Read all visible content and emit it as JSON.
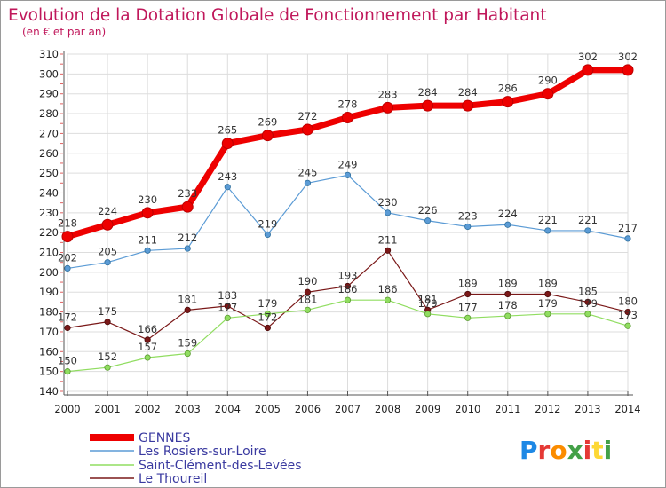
{
  "chart_data": {
    "type": "line",
    "title": "Evolution de la Dotation Globale de Fonctionnement par Habitant",
    "subtitle": "(en € et par an)",
    "xlabel": "",
    "ylabel": "",
    "ylim": [
      140,
      310
    ],
    "yticks": [
      140,
      150,
      160,
      170,
      180,
      190,
      200,
      210,
      220,
      230,
      240,
      250,
      260,
      270,
      280,
      290,
      300,
      310
    ],
    "x": [
      "2000",
      "2001",
      "2002",
      "2003",
      "2004",
      "2005",
      "2006",
      "2007",
      "2008",
      "2009",
      "2010",
      "2011",
      "2012",
      "2013",
      "2014"
    ],
    "grid": true,
    "legend_position": "bottom-left",
    "series": [
      {
        "name": "GENNES",
        "color": "#ee0000",
        "values": [
          218,
          224,
          230,
          233,
          265,
          269,
          272,
          278,
          283,
          284,
          284,
          286,
          290,
          302,
          302
        ]
      },
      {
        "name": "Les Rosiers-sur-Loire",
        "color": "#5b9bd5",
        "values": [
          202,
          205,
          211,
          212,
          243,
          219,
          245,
          249,
          230,
          226,
          223,
          224,
          221,
          221,
          217
        ]
      },
      {
        "name": "Saint-Clément-des-Levées",
        "color": "#90dd60",
        "values": [
          150,
          152,
          157,
          159,
          177,
          179,
          181,
          186,
          186,
          179,
          177,
          178,
          179,
          179,
          173
        ]
      },
      {
        "name": "Le Thoureil",
        "color": "#7a1818",
        "values": [
          172,
          175,
          166,
          181,
          183,
          172,
          190,
          193,
          211,
          181,
          189,
          189,
          189,
          185,
          180
        ]
      }
    ]
  },
  "logo": {
    "text": "Proxiti"
  }
}
